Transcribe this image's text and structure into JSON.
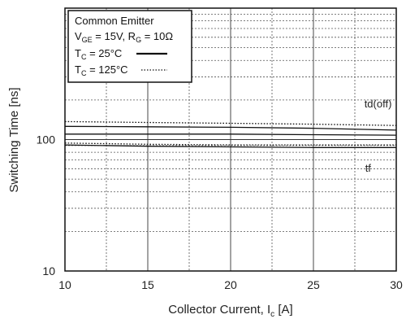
{
  "chart_data": {
    "type": "line",
    "xlabel": "Collector Current, I",
    "xlabel_sub": "c",
    "xlabel_unit": "[A]",
    "ylabel": "Switching Time [ns]",
    "x_scale": "linear",
    "y_scale": "log",
    "xlim": [
      10,
      30
    ],
    "ylim": [
      10,
      1000
    ],
    "x_ticks": [
      10,
      15,
      20,
      25,
      30
    ],
    "x_tick_labels": [
      "10",
      "15",
      "20",
      "25",
      "30"
    ],
    "y_ticks": [
      10,
      100
    ],
    "y_tick_labels": [
      "10",
      "100"
    ],
    "grid": true,
    "legend": {
      "placement": "top-left",
      "title": "Common Emitter",
      "conditions": {
        "vge_symbol": "V",
        "vge_sub": "GE",
        "vge_value": " = 15V, ",
        "rg_symbol": "R",
        "rg_sub": "G",
        "rg_value": " = 10Ω"
      },
      "entries": [
        {
          "symbol": "T",
          "sub": "C",
          "text": " = 25°C",
          "style": "solid"
        },
        {
          "symbol": "T",
          "sub": "C",
          "text": " = 125°C",
          "style": "dotted"
        }
      ]
    },
    "series": [
      {
        "name": "td(off)",
        "temperature": "25°C",
        "style": "solid",
        "x": [
          10,
          15,
          20,
          25,
          30
        ],
        "y": [
          126,
          125,
          124,
          122,
          118
        ]
      },
      {
        "name": "td(off)",
        "temperature": "125°C",
        "style": "dotted",
        "x": [
          10,
          15,
          20,
          25,
          30
        ],
        "y": [
          137,
          135,
          133,
          131,
          128
        ]
      },
      {
        "name": "",
        "temperature": "25°C",
        "style": "solid",
        "x": [
          10,
          15,
          20,
          25,
          30
        ],
        "y": [
          110,
          110,
          110,
          109,
          108
        ]
      },
      {
        "name": "tf",
        "temperature": "25°C",
        "style": "solid",
        "x": [
          10,
          15,
          20,
          25,
          30
        ],
        "y": [
          91,
          89,
          88,
          87,
          87
        ]
      },
      {
        "name": "tf",
        "temperature": "125°C",
        "style": "dotted",
        "x": [
          10,
          15,
          20,
          25,
          30
        ],
        "y": [
          94,
          92,
          91,
          91,
          91
        ]
      }
    ],
    "annotations": [
      {
        "text": "td(off)",
        "x": 28.9,
        "y": 175
      },
      {
        "text": "tf",
        "x": 28.3,
        "y": 57
      }
    ]
  }
}
